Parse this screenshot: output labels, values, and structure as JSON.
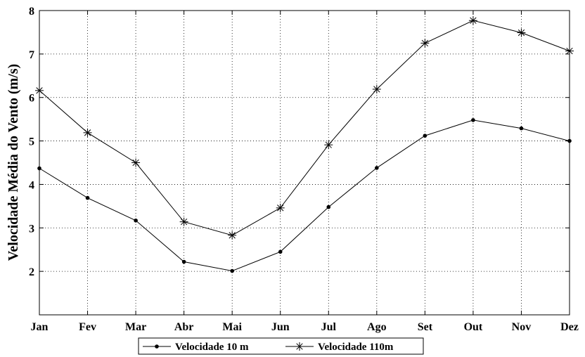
{
  "chart_data": {
    "type": "line",
    "title": "",
    "xlabel": "",
    "ylabel": "Velocidade Média do Vento (m/s)",
    "categories": [
      "Jan",
      "Fev",
      "Mar",
      "Abr",
      "Mai",
      "Jun",
      "Jul",
      "Ago",
      "Set",
      "Out",
      "Nov",
      "Dez"
    ],
    "ylim": [
      1,
      8
    ],
    "yticks": [
      "2",
      "3",
      "4",
      "5",
      "6",
      "7",
      "8"
    ],
    "grid": true,
    "legend_position": "bottom-center",
    "series": [
      {
        "name": "Velocidade 10 m",
        "marker": "dot",
        "color": "#000000",
        "values": [
          4.37,
          3.69,
          3.17,
          2.22,
          2.01,
          2.45,
          3.48,
          4.38,
          5.12,
          5.48,
          5.29,
          5.0
        ]
      },
      {
        "name": "Velocidade 110m",
        "marker": "star",
        "color": "#000000",
        "values": [
          6.16,
          5.19,
          4.5,
          3.14,
          2.83,
          3.46,
          4.91,
          6.19,
          7.25,
          7.77,
          7.49,
          7.07
        ]
      }
    ]
  }
}
